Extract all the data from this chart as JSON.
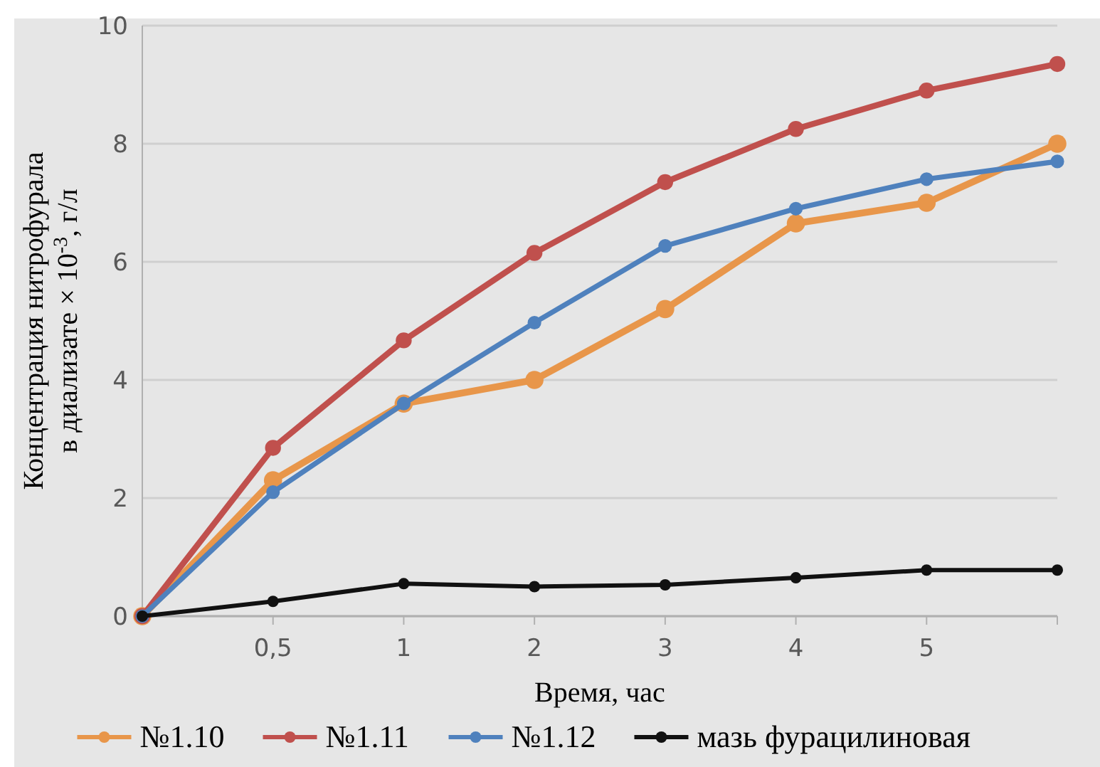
{
  "chart_data": {
    "type": "line",
    "xlabel": "Время, час",
    "ylabel": "Концентрация нитрофурала\nв диализате × 10$^{-3}$, г/л",
    "categories": [
      null,
      "0,5",
      "1",
      "2",
      "3",
      "4",
      "5",
      null
    ],
    "ylim": [
      0,
      10
    ],
    "yticks": [
      0,
      2,
      4,
      6,
      8,
      10
    ],
    "grid": "y",
    "legend": "bottom",
    "marker": "circle",
    "series": [
      {
        "name": "№1.10",
        "color": "#e8964a",
        "values": [
          0,
          2.3,
          3.6,
          4.0,
          5.2,
          6.65,
          7.0,
          8.0
        ]
      },
      {
        "name": "№1.11",
        "color": "#c0504d",
        "values": [
          0,
          2.85,
          4.67,
          6.15,
          7.35,
          8.25,
          8.9,
          9.35
        ]
      },
      {
        "name": "№1.12",
        "color": "#4f81bd",
        "values": [
          0,
          2.1,
          3.6,
          4.97,
          6.27,
          6.9,
          7.4,
          7.7
        ]
      },
      {
        "name": "мазь фурацилиновая",
        "color": "#111111",
        "values": [
          0,
          0.25,
          0.55,
          0.5,
          0.53,
          0.65,
          0.78,
          0.78
        ]
      }
    ]
  }
}
